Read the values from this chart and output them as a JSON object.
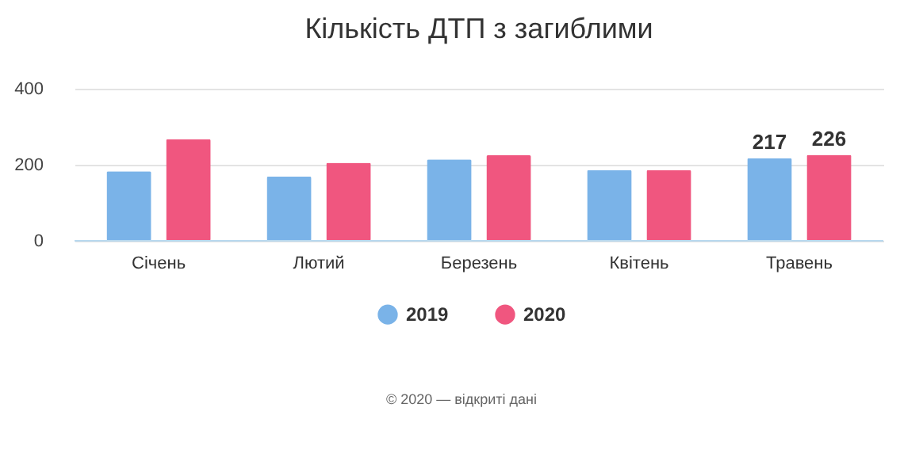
{
  "chart_data": {
    "type": "bar",
    "title": "Кількість ДТП з загиблими",
    "categories": [
      "Січень",
      "Лютий",
      "Березень",
      "Квітень",
      "Травень"
    ],
    "series": [
      {
        "name": "2019",
        "color": "#7ab3e8",
        "values": [
          183,
          169,
          214,
          186,
          217
        ],
        "value_labels": [
          null,
          null,
          null,
          null,
          "217"
        ]
      },
      {
        "name": "2020",
        "color": "#f0567f",
        "values": [
          267,
          205,
          225,
          186,
          226
        ],
        "value_labels": [
          null,
          null,
          null,
          null,
          "226"
        ]
      }
    ],
    "ylim": [
      0,
      400
    ],
    "yticks": [
      0,
      200,
      400
    ],
    "grid": "y",
    "legend": "bottom",
    "annotations": [
      "© 2020 — відкриті дані"
    ]
  }
}
